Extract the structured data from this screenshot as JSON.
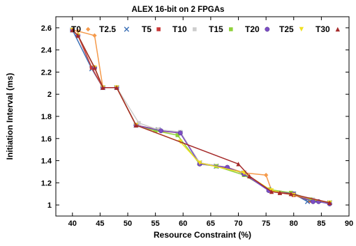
{
  "chart_data": {
    "type": "line",
    "title": "ALEX 16-bit on 2 FPGAs",
    "xlabel": "Resource Constraint (%)",
    "ylabel": "Initiation Interval (ms)",
    "xlim": [
      37,
      90
    ],
    "ylim": [
      0.9,
      2.7
    ],
    "xticks": [
      "40",
      "45",
      "50",
      "55",
      "60",
      "65",
      "70",
      "75",
      "80",
      "85",
      "90"
    ],
    "yticks": [
      "1",
      "1.2",
      "1.4",
      "1.6",
      "1.8",
      "2",
      "2.2",
      "2.4",
      "2.6"
    ],
    "grid": false,
    "legend_position": "top",
    "series": [
      {
        "name": "T0",
        "color": "#f59a4b",
        "marker": "diamond",
        "x": [
          40,
          41,
          44,
          45.5,
          48,
          51.5,
          55,
          59.5,
          63,
          68,
          71,
          75,
          76,
          80,
          83,
          86.5
        ],
        "y": [
          2.58,
          2.57,
          2.53,
          2.06,
          2.06,
          1.72,
          1.67,
          1.65,
          1.38,
          1.34,
          1.29,
          1.27,
          1.13,
          1.09,
          1.04,
          1.02
        ]
      },
      {
        "name": "T2.5",
        "color": "#3a6fb5",
        "marker": "x",
        "x": [
          40,
          43.5,
          45.5,
          48,
          51.5,
          55.5,
          59.5,
          63,
          66,
          71,
          75.5,
          80,
          82.5,
          86.5
        ],
        "y": [
          2.58,
          2.23,
          2.06,
          2.06,
          1.72,
          1.68,
          1.65,
          1.38,
          1.35,
          1.29,
          1.14,
          1.1,
          1.03,
          1.02
        ]
      },
      {
        "name": "T5",
        "color": "#c93a3a",
        "marker": "square",
        "x": [
          40,
          41,
          43.5,
          45.5,
          48,
          51.5,
          55.5,
          59.5,
          63,
          66,
          71,
          75.5,
          77.5,
          80,
          83,
          86.5
        ],
        "y": [
          2.58,
          2.53,
          2.24,
          2.06,
          2.06,
          1.72,
          1.68,
          1.65,
          1.38,
          1.35,
          1.29,
          1.14,
          1.11,
          1.09,
          1.04,
          1.02
        ]
      },
      {
        "name": "T10",
        "color": "#cdcdcd",
        "marker": "square",
        "x": [
          40,
          41,
          44,
          45.5,
          48,
          52,
          55.5,
          59.5,
          63,
          68,
          71,
          75.5,
          80,
          83.5,
          86.5
        ],
        "y": [
          2.58,
          2.53,
          2.24,
          2.06,
          2.06,
          1.74,
          1.68,
          1.66,
          1.38,
          1.34,
          1.28,
          1.13,
          1.1,
          1.05,
          1.02
        ]
      },
      {
        "name": "T15",
        "color": "#8fd13a",
        "marker": "square",
        "x": [
          40,
          41,
          44,
          45.5,
          48,
          51.5,
          55,
          59,
          63,
          66,
          71,
          75.5,
          79.5,
          83,
          86.5
        ],
        "y": [
          2.58,
          2.53,
          2.24,
          2.06,
          2.06,
          1.72,
          1.67,
          1.63,
          1.37,
          1.35,
          1.27,
          1.14,
          1.11,
          1.05,
          1.02
        ]
      },
      {
        "name": "T20",
        "color": "#7b4dc4",
        "marker": "circle",
        "x": [
          40,
          41,
          44,
          45.5,
          48,
          51.5,
          56,
          59.5,
          63,
          68,
          71,
          75.5,
          80,
          83.5,
          84.5,
          86.5
        ],
        "y": [
          2.58,
          2.53,
          2.24,
          2.06,
          2.06,
          1.72,
          1.67,
          1.65,
          1.37,
          1.34,
          1.28,
          1.13,
          1.1,
          1.03,
          1.03,
          1.01
        ]
      },
      {
        "name": "T25",
        "color": "#f0e020",
        "marker": "triangle-down",
        "x": [
          40,
          41,
          44,
          45.5,
          48,
          51.5,
          59.5,
          63,
          71,
          76,
          80,
          86.5
        ],
        "y": [
          2.58,
          2.53,
          2.24,
          2.06,
          2.06,
          1.72,
          1.57,
          1.38,
          1.29,
          1.13,
          1.09,
          1.02
        ]
      },
      {
        "name": "T30",
        "color": "#a52a2a",
        "marker": "triangle",
        "x": [
          40,
          41,
          44,
          45.5,
          48,
          51.5,
          70,
          72,
          76,
          77.5,
          79.5,
          86.5
        ],
        "y": [
          2.58,
          2.53,
          2.24,
          2.06,
          2.06,
          1.72,
          1.37,
          1.26,
          1.12,
          1.11,
          1.1,
          1.02
        ]
      }
    ]
  }
}
